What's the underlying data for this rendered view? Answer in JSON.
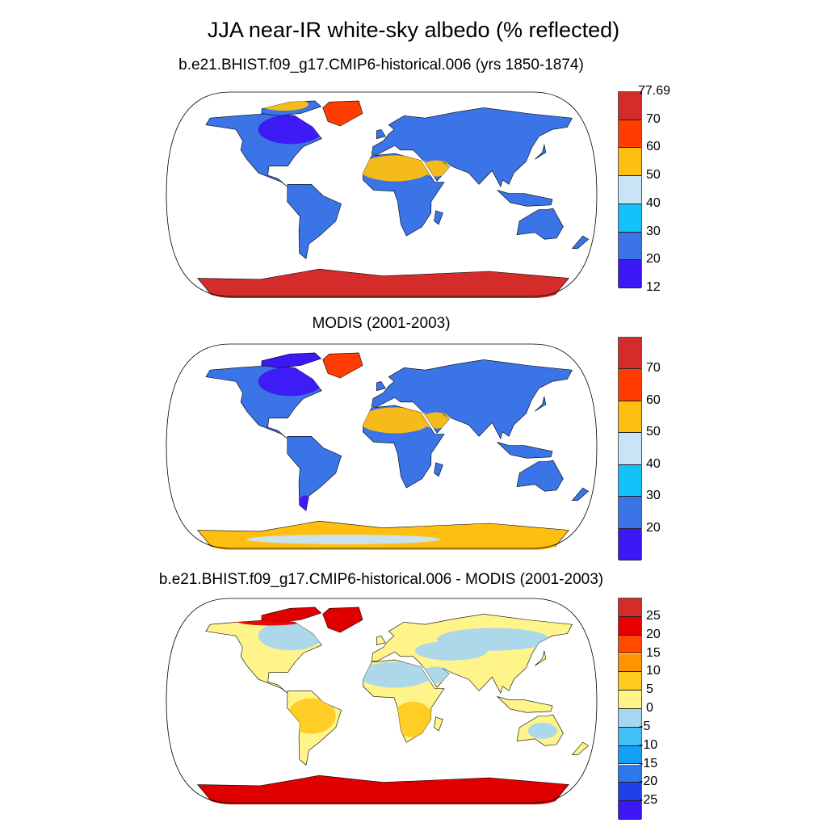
{
  "title": "JJA near-IR white-sky albedo (% reflected)",
  "panels": [
    {
      "title": "b.e21.BHIST.f09_g17.CMIP6-historical.006 (yrs 1850-1874)",
      "colorbar": {
        "labels": [
          "77.69",
          "70",
          "60",
          "50",
          "40",
          "30",
          "20",
          "12"
        ],
        "colors": [
          "#d42b2b",
          "#ff3d00",
          "#ffbf10",
          "#c8e4f5",
          "#12c2f8",
          "#3a74e6",
          "#3e17f5"
        ]
      },
      "land_color": "#3a74e6",
      "features": {
        "greenland": "#ff3d00",
        "antarctica": "#d42b2b",
        "sahara": "#ffbf10",
        "canada": "#3e17f5",
        "arctic": "#ffbf10"
      }
    },
    {
      "title": "MODIS (2001-2003)",
      "colorbar": {
        "labels": [
          "",
          "70",
          "60",
          "50",
          "40",
          "30",
          "20",
          ""
        ],
        "colors": [
          "#d42b2b",
          "#ff3d00",
          "#ffbf10",
          "#c8e4f5",
          "#12c2f8",
          "#3a74e6",
          "#3e17f5"
        ]
      },
      "land_color": "#3a74e6",
      "features": {
        "greenland": "#ff3d00",
        "antarctica": "#ffbf10",
        "antarctica_alt": "#c8e4f5",
        "sahara": "#ffbf10",
        "canada": "#3e17f5",
        "arctic": "#3e17f5"
      }
    },
    {
      "title": "b.e21.BHIST.f09_g17.CMIP6-historical.006 - MODIS (2001-2003)",
      "colorbar": {
        "labels": [
          "",
          "25",
          "20",
          "15",
          "10",
          "5",
          "0",
          "-5",
          "-10",
          "-15",
          "-20",
          "-25",
          ""
        ],
        "colors": [
          "#d42b2b",
          "#e80000",
          "#ff4a00",
          "#ff9400",
          "#ffcb20",
          "#fff48a",
          "#a8d6f0",
          "#40c0f5",
          "#12a0f8",
          "#2f78ec",
          "#2040e8",
          "#3e17f5"
        ]
      },
      "land_color": "#fff48a",
      "features": {
        "greenland": "#e00000",
        "antarctica": "#e00000",
        "sahara": "#a8d6f0",
        "canada": "#a8d6f0",
        "arctic": "#e00000",
        "southamerica": "#ffcb20",
        "africa": "#ffcb20"
      }
    }
  ]
}
